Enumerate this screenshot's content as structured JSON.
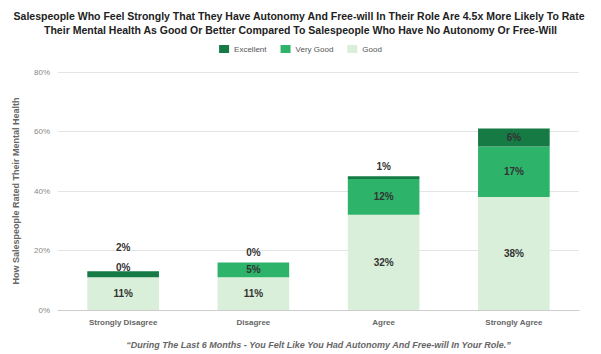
{
  "chart_data": {
    "type": "bar",
    "title": "Salespeople Who Feel Strongly That They Have Autonomy And Free-will In Their Role Are 4.5x More Likely To Rate Their Mental Health As Good Or Better Compared To Salespeople Who Have No Autonomy Or Free-Will",
    "x_label": "“During The Last 6 Months - You Felt Like You Had Autonomy And Free-will In Your Role.”",
    "y_label": "How Salespeople Rated Their Mental Health",
    "categories": [
      "Strongly Disagree",
      "Disagree",
      "Agree",
      "Strongly Agree"
    ],
    "series": [
      {
        "name": "Good",
        "color": "#d9efd9",
        "values": [
          11,
          11,
          32,
          38
        ],
        "value_labels": [
          "11%",
          "11%",
          "32%",
          "38%"
        ]
      },
      {
        "name": "Very Good",
        "color": "#2db36a",
        "values": [
          0,
          5,
          12,
          17
        ],
        "value_labels": [
          "0%",
          "5%",
          "12%",
          "17%"
        ]
      },
      {
        "name": "Excellent",
        "color": "#167a45",
        "values": [
          2,
          0,
          1,
          6
        ],
        "value_labels": [
          "2%",
          "0%",
          "1%",
          "6%"
        ]
      }
    ],
    "stacked": true,
    "data_labels": true,
    "legend": "top",
    "ylim": [
      0,
      80
    ],
    "yticks": [
      {
        "value": 0,
        "label": "0%"
      },
      {
        "value": 20,
        "label": "20%"
      },
      {
        "value": 40,
        "label": "40%"
      },
      {
        "value": 60,
        "label": "60%"
      },
      {
        "value": 80,
        "label": "80%"
      }
    ],
    "grid": true
  }
}
